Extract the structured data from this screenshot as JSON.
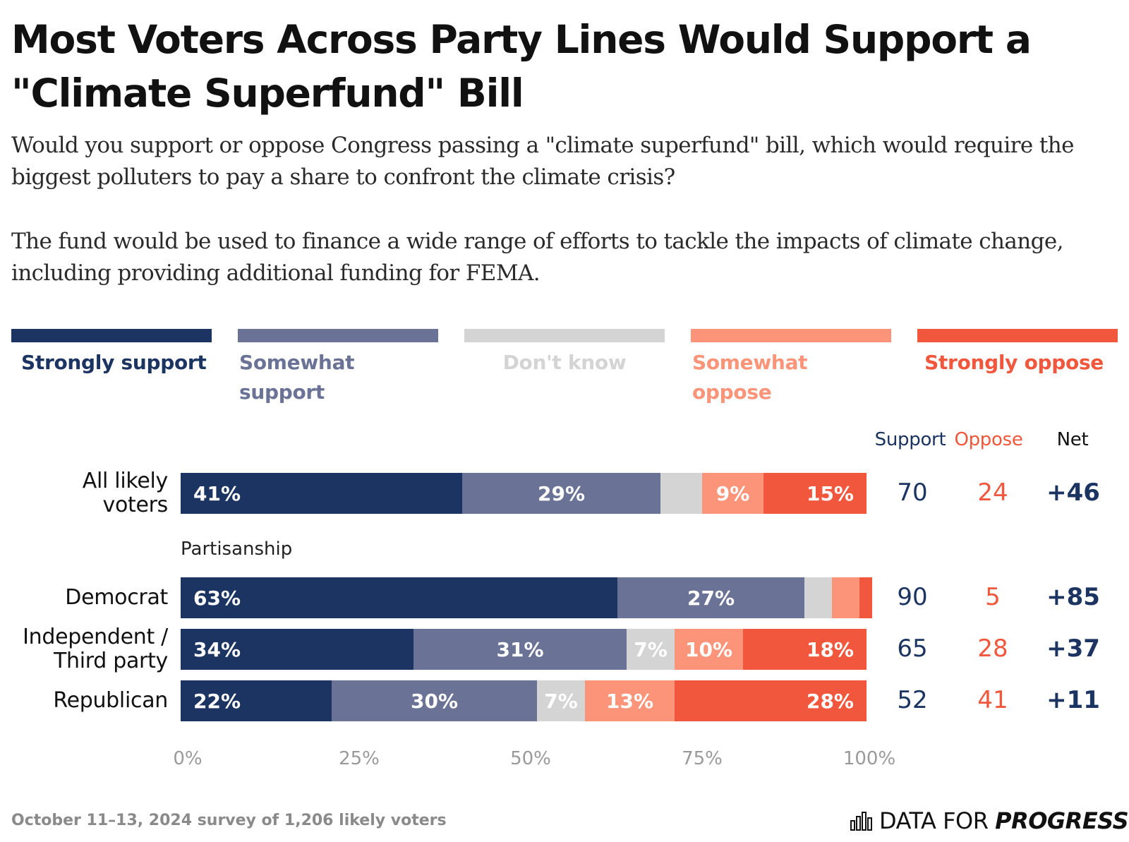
{
  "title": "Most Voters Across Party Lines Would Support a \"Climate Superfund\" Bill",
  "subtitle_1": "Would you support or oppose Congress passing a \"climate superfund\" bill, which would require the biggest polluters to pay a share to confront the climate crisis?",
  "subtitle_2": "The fund would be used to finance a wide range of efforts to tackle the impacts of climate change, including providing additional funding for FEMA.",
  "colors": {
    "strongly_support": "#1c3461",
    "somewhat_support": "#6a7396",
    "dont_know": "#d4d4d4",
    "somewhat_oppose": "#fb9479",
    "strongly_oppose": "#f0573c",
    "support_text": "#1c3461",
    "oppose_text": "#f0573c"
  },
  "columns": {
    "support": "Support",
    "oppose": "Oppose",
    "net": "Net"
  },
  "group_label": "Partisanship",
  "footer_note": "October 11–13, 2024 survey of 1,206 likely voters",
  "brand": {
    "light": "DATA FOR ",
    "strong": "PROGRESS",
    "icon": "bar-chart-logo-icon"
  },
  "chart_data": {
    "type": "bar",
    "orientation": "horizontal",
    "stacked": true,
    "xlim": [
      0,
      100
    ],
    "x_ticks": [
      "0%",
      "25%",
      "50%",
      "75%",
      "100%"
    ],
    "legend_position": "top",
    "series": [
      {
        "key": "strongly_support",
        "name": "Strongly support"
      },
      {
        "key": "somewhat_support",
        "name": "Somewhat support"
      },
      {
        "key": "dont_know",
        "name": "Don't know"
      },
      {
        "key": "somewhat_oppose",
        "name": "Somewhat oppose"
      },
      {
        "key": "strongly_oppose",
        "name": "Strongly oppose"
      }
    ],
    "rows": [
      {
        "label": "All likely voters",
        "values": [
          41,
          29,
          6,
          9,
          15
        ],
        "labels": [
          "41%",
          "29%",
          "",
          "9%",
          "15%"
        ],
        "support": "70",
        "oppose": "24",
        "net": "+46"
      },
      {
        "label": "Democrat",
        "values": [
          63,
          27,
          4,
          4,
          1
        ],
        "labels": [
          "63%",
          "27%",
          "",
          "",
          ""
        ],
        "support": "90",
        "oppose": "5",
        "net": "+85"
      },
      {
        "label": "Independent / Third party",
        "values": [
          34,
          31,
          7,
          10,
          18
        ],
        "labels": [
          "34%",
          "31%",
          "7%",
          "10%",
          "18%"
        ],
        "support": "65",
        "oppose": "28",
        "net": "+37"
      },
      {
        "label": "Republican",
        "values": [
          22,
          30,
          7,
          13,
          28
        ],
        "labels": [
          "22%",
          "30%",
          "7%",
          "13%",
          "28%"
        ],
        "support": "52",
        "oppose": "41",
        "net": "+11"
      }
    ]
  }
}
